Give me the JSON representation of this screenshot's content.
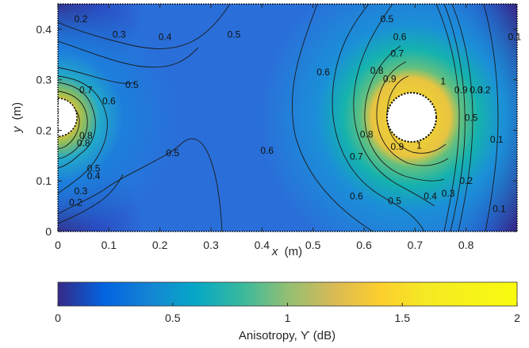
{
  "chart_data": {
    "type": "heatmap",
    "title": "",
    "xlabel_var": "x",
    "xlabel_unit": "(m)",
    "ylabel_var": "y",
    "ylabel_unit": "(m)",
    "xlim": [
      0,
      0.9
    ],
    "ylim": [
      0,
      0.45
    ],
    "xticks": [
      0,
      0.1,
      0.2,
      0.3,
      0.4,
      0.5,
      0.6,
      0.7,
      0.8
    ],
    "xtick_labels": [
      "0",
      "0.1",
      "0.2",
      "0.3",
      "0.4",
      "0.5",
      "0.6",
      "0.7",
      "0.8"
    ],
    "yticks": [
      0,
      0.1,
      0.2,
      0.3,
      0.4
    ],
    "ytick_labels": [
      "0",
      "0.1",
      "0.2",
      "0.3",
      "0.4"
    ],
    "colormap": "parula",
    "colorbar": {
      "label": "Anisotropy,   ϒ (dB)",
      "range": [
        0,
        2
      ],
      "ticks": [
        0,
        0.5,
        1,
        1.5,
        2
      ],
      "tick_labels": [
        "0",
        "0.5",
        "1",
        "1.5",
        "2"
      ],
      "orientation": "horizontal",
      "placement": "bottom"
    },
    "sources": [
      {
        "x": 0.0,
        "y": 0.225,
        "radius": 0.03,
        "shape": "half-disc at left edge"
      },
      {
        "x": 0.705,
        "y": 0.225,
        "radius": 0.047,
        "shape": "disc"
      }
    ],
    "contour_labels": [
      {
        "text": "0.2",
        "x": 0.045,
        "y": 0.42
      },
      {
        "text": "0.3",
        "x": 0.12,
        "y": 0.39
      },
      {
        "text": "0.4",
        "x": 0.21,
        "y": 0.385
      },
      {
        "text": "0.5",
        "x": 0.345,
        "y": 0.39
      },
      {
        "text": "0.5",
        "x": 0.145,
        "y": 0.29
      },
      {
        "text": "0.6",
        "x": 0.1,
        "y": 0.258
      },
      {
        "text": "0.7",
        "x": 0.055,
        "y": 0.28
      },
      {
        "text": "0.5",
        "x": 0.225,
        "y": 0.155
      },
      {
        "text": "0.8",
        "x": 0.055,
        "y": 0.19
      },
      {
        "text": "0.8",
        "x": 0.05,
        "y": 0.175
      },
      {
        "text": "0.5",
        "x": 0.07,
        "y": 0.125
      },
      {
        "text": "0.4",
        "x": 0.07,
        "y": 0.11
      },
      {
        "text": "0.3",
        "x": 0.045,
        "y": 0.08
      },
      {
        "text": "0.2",
        "x": 0.035,
        "y": 0.057
      },
      {
        "text": "0.6",
        "x": 0.41,
        "y": 0.16
      },
      {
        "text": "0.6",
        "x": 0.52,
        "y": 0.315
      },
      {
        "text": "0.5",
        "x": 0.645,
        "y": 0.42
      },
      {
        "text": "0.6",
        "x": 0.67,
        "y": 0.385
      },
      {
        "text": "0.7",
        "x": 0.665,
        "y": 0.352
      },
      {
        "text": "0.8",
        "x": 0.625,
        "y": 0.318
      },
      {
        "text": "0.9",
        "x": 0.65,
        "y": 0.302
      },
      {
        "text": "1",
        "x": 0.755,
        "y": 0.297
      },
      {
        "text": "0.9",
        "x": 0.79,
        "y": 0.28
      },
      {
        "text": "0.3",
        "x": 0.82,
        "y": 0.28
      },
      {
        "text": "0.2",
        "x": 0.835,
        "y": 0.28
      },
      {
        "text": "0.1",
        "x": 0.895,
        "y": 0.385
      },
      {
        "text": "0.1",
        "x": 0.86,
        "y": 0.182
      },
      {
        "text": "0.5",
        "x": 0.81,
        "y": 0.225
      },
      {
        "text": "0.8",
        "x": 0.605,
        "y": 0.192
      },
      {
        "text": "0.9",
        "x": 0.665,
        "y": 0.168
      },
      {
        "text": "1",
        "x": 0.708,
        "y": 0.17
      },
      {
        "text": "0.7",
        "x": 0.585,
        "y": 0.148
      },
      {
        "text": "0.6",
        "x": 0.585,
        "y": 0.07
      },
      {
        "text": "0.5",
        "x": 0.66,
        "y": 0.06
      },
      {
        "text": "0.4",
        "x": 0.73,
        "y": 0.07
      },
      {
        "text": "0.3",
        "x": 0.765,
        "y": 0.075
      },
      {
        "text": "0.2",
        "x": 0.8,
        "y": 0.1
      },
      {
        "text": "0.1",
        "x": 0.865,
        "y": 0.045
      }
    ]
  }
}
